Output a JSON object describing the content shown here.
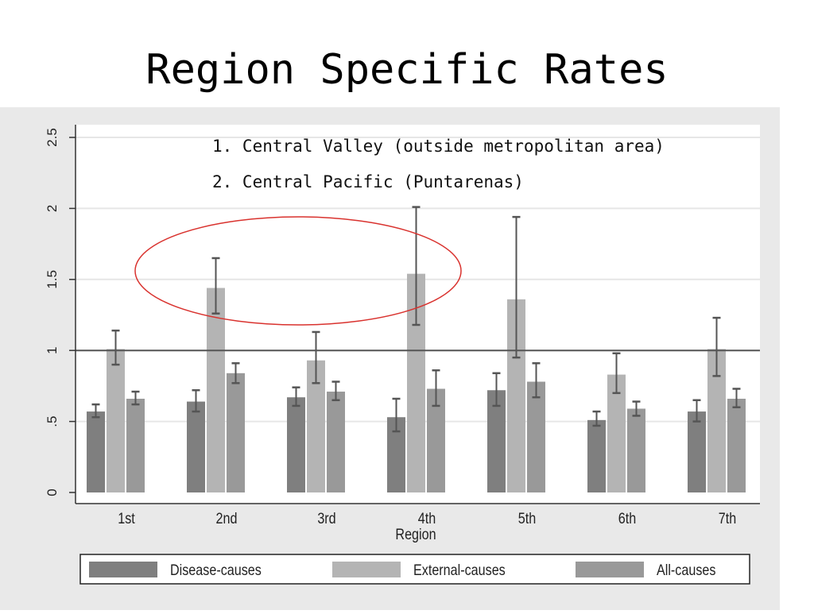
{
  "slide": {
    "title": "Region Specific Rates"
  },
  "chart_data": {
    "type": "bar",
    "xlabel": "Region",
    "ylabel": "",
    "ylim": [
      0,
      2.5
    ],
    "yticks": [
      {
        "value": 0,
        "label": "0"
      },
      {
        "value": 0.5,
        "label": ".5"
      },
      {
        "value": 1,
        "label": "1"
      },
      {
        "value": 1.5,
        "label": "1.5"
      },
      {
        "value": 2,
        "label": "2"
      },
      {
        "value": 2.5,
        "label": "2.5"
      }
    ],
    "reference_line": 1,
    "grid": true,
    "legend_position": "bottom",
    "categories": [
      "1st",
      "2nd",
      "3rd",
      "4th",
      "5th",
      "6th",
      "7th"
    ],
    "series": [
      {
        "name": "Disease-causes",
        "color": "#7f7f7f",
        "values": [
          0.57,
          0.64,
          0.67,
          0.53,
          0.72,
          0.51,
          0.57
        ],
        "lower": [
          0.53,
          0.57,
          0.61,
          0.43,
          0.61,
          0.47,
          0.5
        ],
        "upper": [
          0.62,
          0.72,
          0.74,
          0.66,
          0.84,
          0.57,
          0.65
        ]
      },
      {
        "name": "External-causes",
        "color": "#b4b4b4",
        "values": [
          1.01,
          1.44,
          0.93,
          1.54,
          1.36,
          0.83,
          1.01
        ],
        "lower": [
          0.9,
          1.26,
          0.77,
          1.18,
          0.95,
          0.7,
          0.82
        ],
        "upper": [
          1.14,
          1.65,
          1.13,
          2.01,
          1.94,
          0.98,
          1.23
        ]
      },
      {
        "name": "All-causes",
        "color": "#999999",
        "values": [
          0.66,
          0.84,
          0.71,
          0.73,
          0.78,
          0.59,
          0.66
        ],
        "lower": [
          0.62,
          0.77,
          0.65,
          0.61,
          0.67,
          0.54,
          0.6
        ],
        "upper": [
          0.71,
          0.91,
          0.78,
          0.86,
          0.91,
          0.64,
          0.73
        ]
      }
    ],
    "annotations": [
      "1. Central Valley (outside metropolitan area)",
      "2. Central Pacific (Puntarenas)"
    ],
    "highlight_color": "#d9322e"
  }
}
